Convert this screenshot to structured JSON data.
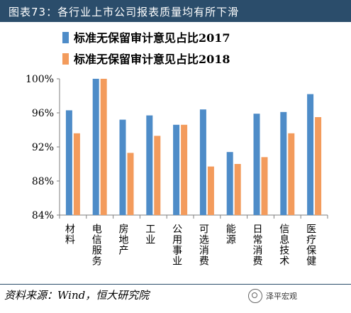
{
  "figure_title": "图表73：各行业上市公司报表质量均有所下滑",
  "source_text": "资料来源：Wind，恒大研究院",
  "watermark_text": "泽平宏观",
  "chart_data": {
    "type": "bar",
    "categories": [
      "材料",
      "电信服务",
      "房地产",
      "工业",
      "公用事业",
      "可选消费",
      "能源",
      "日常消费",
      "信息技术",
      "医疗保健"
    ],
    "series": [
      {
        "name": "标准无保留审计意见占比2017",
        "color": "#4e8cc8",
        "values": [
          96.3,
          100.0,
          95.2,
          95.7,
          94.6,
          96.4,
          91.4,
          95.9,
          96.1,
          98.2
        ]
      },
      {
        "name": "标准无保留审计意见占比2018",
        "color": "#f39b5c",
        "values": [
          93.6,
          100.0,
          91.3,
          93.3,
          94.6,
          89.7,
          90.0,
          90.8,
          93.6,
          95.5
        ]
      }
    ],
    "ylim": [
      84,
      100
    ],
    "yticks": [
      84,
      88,
      92,
      96,
      100
    ],
    "ytick_labels": [
      "84%",
      "88%",
      "92%",
      "96%",
      "100%"
    ],
    "legend_position": "top-left",
    "grid": false
  }
}
